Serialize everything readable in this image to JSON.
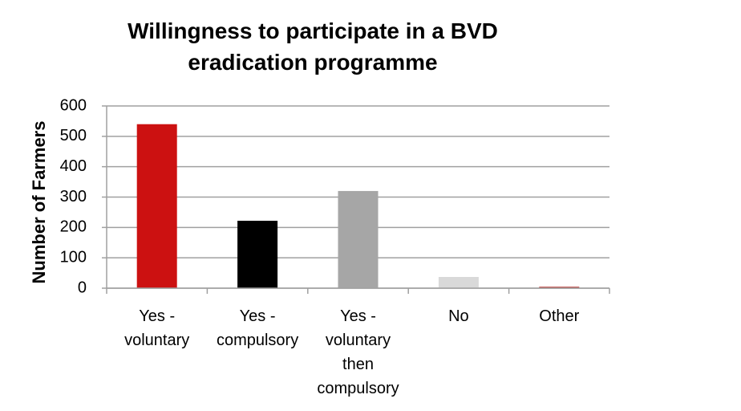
{
  "chart_data": {
    "type": "bar",
    "title": "Willingness to participate in a BVD eradication programme",
    "y_label": "Number of Farmers",
    "categories": [
      "Yes - voluntary",
      "Yes - compulsory",
      "Yes - voluntary then compulsory",
      "No",
      "Other"
    ],
    "values": [
      540,
      222,
      320,
      37,
      5
    ],
    "colors": [
      "#cc1111",
      "#000000",
      "#a6a6a6",
      "#d9d9d9",
      "#c0504d"
    ],
    "ylim": [
      0,
      600
    ],
    "yticks": [
      0,
      100,
      200,
      300,
      400,
      500,
      600
    ],
    "grid": true
  }
}
